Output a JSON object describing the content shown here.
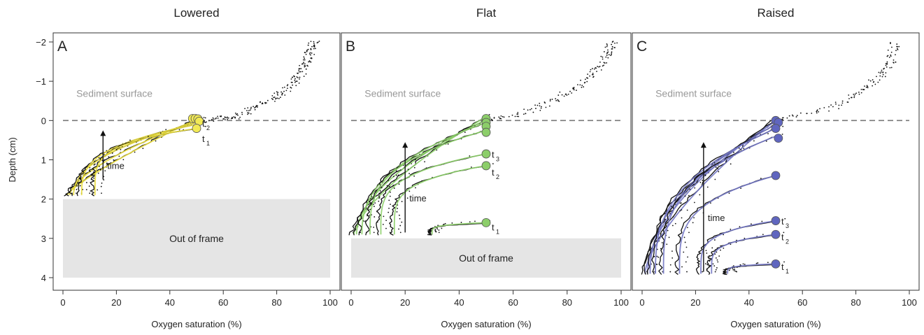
{
  "figure": {
    "ylabel": "Depth (cm)",
    "sediment_label": "Sediment surface",
    "out_of_frame_label": "Out of frame",
    "time_label": "time",
    "yticks": [
      "−2",
      "−1",
      "0",
      "1",
      "2",
      "3",
      "4"
    ],
    "xticks": [
      "0",
      "20",
      "40",
      "60",
      "80",
      "100"
    ]
  },
  "chart_data": [
    {
      "type": "line",
      "letter": "A",
      "title": "Lowered",
      "xlabel": "Oxygen saturation (%)",
      "ylabel": "Depth (cm)",
      "xlim": [
        0,
        100
      ],
      "ylim": [
        4,
        -2
      ],
      "color": "#e8dc3c",
      "marker_color": "#f2ea55",
      "sediment_surface_depth": 0,
      "out_of_frame_below": 2.0,
      "time_labels": [
        {
          "text": "t",
          "sub": "2",
          "x": 50,
          "y": 0.15
        },
        {
          "text": "t",
          "sub": "1",
          "x": 50,
          "y": 0.55
        }
      ],
      "time_arrow": {
        "x": 15,
        "from": 1.5,
        "to": 0.25
      },
      "profiles": [
        {
          "bottom": 1.9,
          "surface_o2": 49,
          "surface_depth": 0.0,
          "x_bottom": 1.5,
          "k": 1.8
        },
        {
          "bottom": 1.9,
          "surface_o2": 49,
          "surface_depth": 0.02,
          "x_bottom": 2.5,
          "k": 1.4
        },
        {
          "bottom": 1.9,
          "surface_o2": 50,
          "surface_depth": 0.05,
          "x_bottom": 4,
          "k": 1.0
        },
        {
          "bottom": 1.9,
          "surface_o2": 50,
          "surface_depth": 0.1,
          "x_bottom": 7,
          "k": 0.7
        },
        {
          "bottom": 1.9,
          "surface_o2": 50,
          "surface_depth": 0.2,
          "x_bottom": 12,
          "k": 0.5
        }
      ],
      "markers": [
        {
          "x": 48.5,
          "y": -0.05
        },
        {
          "x": 49.5,
          "y": -0.05
        },
        {
          "x": 50.5,
          "y": -0.04
        },
        {
          "x": 51,
          "y": 0.02
        },
        {
          "x": 50,
          "y": 0.2
        }
      ],
      "water_profile": [
        [
          50,
          0
        ],
        [
          58,
          -0.05
        ],
        [
          65,
          -0.1
        ],
        [
          73,
          -0.35
        ],
        [
          80,
          -0.6
        ],
        [
          85,
          -0.9
        ],
        [
          89,
          -1.2
        ],
        [
          91,
          -1.5
        ],
        [
          93,
          -1.8
        ],
        [
          94,
          -2.0
        ]
      ]
    },
    {
      "type": "line",
      "letter": "B",
      "title": "Flat",
      "xlabel": "Oxygen saturation (%)",
      "ylabel": "",
      "xlim": [
        0,
        100
      ],
      "ylim": [
        4,
        -2
      ],
      "color": "#8ed06c",
      "marker_color": "#8cce6a",
      "sediment_surface_depth": 0,
      "out_of_frame_below": 3.0,
      "time_labels": [
        {
          "text": "t",
          "sub": "3",
          "x": 50,
          "y": 0.95
        },
        {
          "text": "t",
          "sub": "2",
          "x": 50,
          "y": 1.4
        },
        {
          "text": "t",
          "sub": "1",
          "x": 50,
          "y": 2.8
        }
      ],
      "time_arrow": {
        "x": 20,
        "from": 2.85,
        "to": 0.55
      },
      "profiles": [
        {
          "bottom": 2.9,
          "surface_o2": 50,
          "surface_depth": -0.1,
          "x_bottom": 1,
          "k": 1.5
        },
        {
          "bottom": 2.9,
          "surface_o2": 50,
          "surface_depth": -0.02,
          "x_bottom": 2,
          "k": 1.2
        },
        {
          "bottom": 2.9,
          "surface_o2": 50,
          "surface_depth": 0.05,
          "x_bottom": 4,
          "k": 0.9
        },
        {
          "bottom": 2.9,
          "surface_o2": 50,
          "surface_depth": 0.25,
          "x_bottom": 7,
          "k": 0.7
        },
        {
          "bottom": 2.9,
          "surface_o2": 50,
          "surface_depth": 0.85,
          "x_bottom": 11,
          "k": 0.55
        },
        {
          "bottom": 2.9,
          "surface_o2": 50,
          "surface_depth": 1.15,
          "x_bottom": 16,
          "k": 0.5
        },
        {
          "bottom": 2.9,
          "surface_o2": 50,
          "surface_depth": 2.6,
          "x_bottom": 30,
          "k": 0.4
        }
      ],
      "markers": [
        {
          "x": 50,
          "y": -0.05
        },
        {
          "x": 50,
          "y": 0.05
        },
        {
          "x": 50,
          "y": 0.15
        },
        {
          "x": 50,
          "y": 0.3
        },
        {
          "x": 50,
          "y": 0.85
        },
        {
          "x": 50,
          "y": 1.15
        },
        {
          "x": 50,
          "y": 2.6
        }
      ],
      "water_profile": [
        [
          50,
          0
        ],
        [
          65,
          -0.2
        ],
        [
          75,
          -0.5
        ],
        [
          85,
          -0.9
        ],
        [
          91,
          -1.3
        ],
        [
          95,
          -1.7
        ],
        [
          97,
          -2.0
        ]
      ]
    },
    {
      "type": "line",
      "letter": "C",
      "title": "Raised",
      "xlabel": "Oxygen saturation (%)",
      "ylabel": "",
      "xlim": [
        0,
        100
      ],
      "ylim": [
        4,
        -2
      ],
      "color": "#7377c4",
      "marker_color": "#6066bf",
      "sediment_surface_depth": 0,
      "out_of_frame_below": null,
      "time_labels": [
        {
          "text": "t",
          "sub": "3",
          "x": 50,
          "y": 2.65
        },
        {
          "text": "t",
          "sub": "2",
          "x": 50,
          "y": 3.05
        },
        {
          "text": "t",
          "sub": "1",
          "x": 50,
          "y": 3.8
        }
      ],
      "time_arrow": {
        "x": 23,
        "from": 3.85,
        "to": 0.55
      },
      "profiles": [
        {
          "bottom": 3.9,
          "surface_o2": 50,
          "surface_depth": -0.02,
          "x_bottom": 1,
          "k": 1.5
        },
        {
          "bottom": 3.9,
          "surface_o2": 50,
          "surface_depth": 0.02,
          "x_bottom": 2,
          "k": 1.2
        },
        {
          "bottom": 3.9,
          "surface_o2": 50,
          "surface_depth": 0.1,
          "x_bottom": 3,
          "k": 1.0
        },
        {
          "bottom": 3.9,
          "surface_o2": 50,
          "surface_depth": 0.2,
          "x_bottom": 5,
          "k": 0.8
        },
        {
          "bottom": 3.9,
          "surface_o2": 50,
          "surface_depth": 0.4,
          "x_bottom": 8,
          "k": 0.7
        },
        {
          "bottom": 3.9,
          "surface_o2": 50,
          "surface_depth": 1.4,
          "x_bottom": 14,
          "k": 0.6
        },
        {
          "bottom": 3.9,
          "surface_o2": 50,
          "surface_depth": 2.55,
          "x_bottom": 22,
          "k": 0.5
        },
        {
          "bottom": 3.9,
          "surface_o2": 50,
          "surface_depth": 2.9,
          "x_bottom": 26,
          "k": 0.45
        },
        {
          "bottom": 3.9,
          "surface_o2": 50,
          "surface_depth": 3.65,
          "x_bottom": 32,
          "k": 0.4
        }
      ],
      "markers": [
        {
          "x": 50,
          "y": 0.0
        },
        {
          "x": 51,
          "y": 0.05
        },
        {
          "x": 50,
          "y": 0.2
        },
        {
          "x": 51,
          "y": 0.45
        },
        {
          "x": 50,
          "y": 1.4
        },
        {
          "x": 50,
          "y": 2.55
        },
        {
          "x": 50,
          "y": 2.9
        },
        {
          "x": 50,
          "y": 3.65
        }
      ],
      "water_profile": [
        [
          50,
          0
        ],
        [
          70,
          -0.3
        ],
        [
          82,
          -0.7
        ],
        [
          89,
          -1.1
        ],
        [
          93,
          -1.5
        ],
        [
          95,
          -2.0
        ]
      ]
    }
  ]
}
